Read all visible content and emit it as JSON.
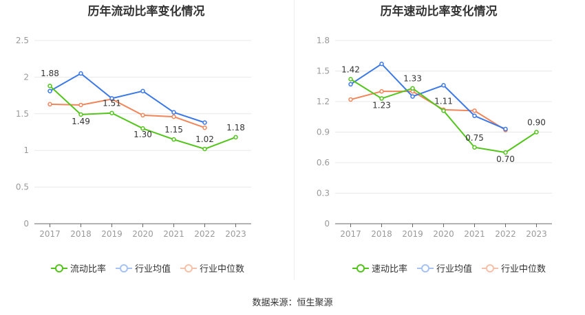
{
  "colors": {
    "company": "#52c41a",
    "industry_avg": "#3b78e7",
    "industry_median": "#f0855a",
    "grid": "#e8e8e8",
    "axis_text": "#999999",
    "axis_line": "#666666"
  },
  "source": "数据来源：恒生聚源",
  "chart_data": [
    {
      "type": "line",
      "title": "历年流动比率变化情况",
      "xlabel": "",
      "ylabel": "",
      "categories": [
        "2017",
        "2018",
        "2019",
        "2020",
        "2021",
        "2022",
        "2023"
      ],
      "ylim": [
        0,
        2.5
      ],
      "yticks": [
        "0",
        "0.5",
        "1",
        "1.5",
        "2",
        "2.5"
      ],
      "grid": true,
      "legend_position": "bottom",
      "series": [
        {
          "name": "流动比率",
          "key": "company",
          "values": [
            1.88,
            1.49,
            1.51,
            1.3,
            1.15,
            1.02,
            1.18
          ],
          "labels": [
            "1.88",
            "1.49",
            "1.51",
            "1.30",
            "1.15",
            "1.02",
            "1.18"
          ]
        },
        {
          "name": "行业均值",
          "key": "industry_avg",
          "values": [
            1.81,
            2.05,
            1.71,
            1.81,
            1.52,
            1.38,
            null
          ]
        },
        {
          "name": "行业中位数",
          "key": "industry_median",
          "values": [
            1.63,
            1.62,
            1.7,
            1.48,
            1.46,
            1.31,
            null
          ]
        }
      ]
    },
    {
      "type": "line",
      "title": "历年速动比率变化情况",
      "xlabel": "",
      "ylabel": "",
      "categories": [
        "2017",
        "2018",
        "2019",
        "2020",
        "2021",
        "2022",
        "2023"
      ],
      "ylim": [
        0,
        1.8
      ],
      "yticks": [
        "0",
        "0.3",
        "0.6",
        "0.9",
        "1.2",
        "1.5",
        "1.8"
      ],
      "grid": true,
      "legend_position": "bottom",
      "series": [
        {
          "name": "速动比率",
          "key": "company",
          "values": [
            1.42,
            1.23,
            1.33,
            1.11,
            0.75,
            0.7,
            0.9
          ],
          "labels": [
            "1.42",
            "1.23",
            "1.33",
            "1.11",
            "0.75",
            "0.70",
            "0.90"
          ]
        },
        {
          "name": "行业均值",
          "key": "industry_avg",
          "values": [
            1.37,
            1.57,
            1.25,
            1.36,
            1.06,
            0.93,
            null
          ]
        },
        {
          "name": "行业中位数",
          "key": "industry_median",
          "values": [
            1.22,
            1.3,
            1.3,
            1.12,
            1.11,
            0.92,
            null
          ]
        }
      ]
    }
  ]
}
